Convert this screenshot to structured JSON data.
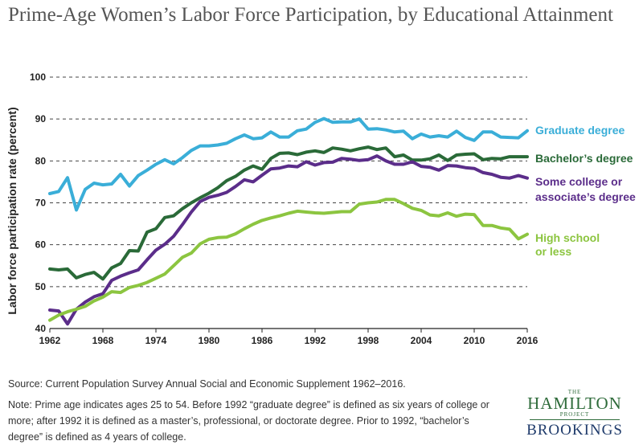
{
  "title": "Prime-Age Women’s Labor Force Participation, by Educational Attainment",
  "source": "Source: Current Population Survey Annual Social and Economic Supplement 1962–2016.",
  "note": "Note: Prime age indicates ages 25 to 54. Before 1992 “graduate degree” is defined as six years of college or more; after 1992 it is defined as a master’s, professional, or doctorate degree. Prior to 1992, “bachelor’s degree” is defined as 4 years of college.",
  "logo": {
    "the": "THE",
    "hamilton": "HAMILTON",
    "project": "PROJECT",
    "brookings": "BROOKINGS"
  },
  "chart_data": {
    "type": "line",
    "title": "Prime-Age Women’s Labor Force Participation, by Educational Attainment",
    "xlabel": "",
    "ylabel": "Labor force participation rate (percent)",
    "xlim": [
      1962,
      2016
    ],
    "ylim": [
      40,
      100
    ],
    "yticks": [
      40,
      50,
      60,
      70,
      80,
      90,
      100
    ],
    "xticks": [
      1962,
      1968,
      1974,
      1980,
      1986,
      1992,
      1998,
      2004,
      2010,
      2016
    ],
    "grid": "horizontal dashed",
    "x": [
      1962,
      1963,
      1964,
      1965,
      1966,
      1967,
      1968,
      1969,
      1970,
      1971,
      1972,
      1973,
      1974,
      1975,
      1976,
      1977,
      1978,
      1979,
      1980,
      1981,
      1982,
      1983,
      1984,
      1985,
      1986,
      1987,
      1988,
      1989,
      1990,
      1991,
      1992,
      1993,
      1994,
      1995,
      1996,
      1997,
      1998,
      1999,
      2000,
      2001,
      2002,
      2003,
      2004,
      2005,
      2006,
      2007,
      2008,
      2009,
      2010,
      2011,
      2012,
      2013,
      2014,
      2015,
      2016
    ],
    "series": [
      {
        "name": "Graduate degree",
        "label_lines": [
          "Graduate degree"
        ],
        "color": "#3aaed8",
        "values": [
          72.2,
          72.7,
          76.0,
          68.3,
          73.2,
          74.7,
          74.3,
          74.5,
          76.8,
          74.0,
          76.5,
          77.8,
          79.2,
          80.3,
          79.3,
          80.8,
          82.5,
          83.6,
          83.6,
          83.8,
          84.2,
          85.3,
          86.2,
          85.3,
          85.5,
          86.9,
          85.7,
          85.7,
          87.2,
          87.6,
          89.2,
          90.1,
          89.2,
          89.3,
          89.3,
          90.0,
          87.6,
          87.7,
          87.4,
          86.9,
          87.1,
          85.3,
          86.4,
          85.7,
          86.0,
          85.7,
          87.1,
          85.6,
          84.9,
          86.9,
          86.9,
          85.7,
          85.6,
          85.5,
          87.2
        ]
      },
      {
        "name": "Bachelor’s degree",
        "label_lines": [
          "Bachelor’s degree"
        ],
        "color": "#2a6a38",
        "values": [
          54.2,
          54.0,
          54.2,
          52.1,
          52.9,
          53.4,
          51.8,
          54.5,
          55.5,
          58.6,
          58.5,
          63.0,
          63.8,
          66.5,
          66.9,
          68.6,
          70.0,
          71.2,
          72.3,
          73.6,
          75.3,
          76.3,
          77.8,
          78.8,
          78.0,
          80.6,
          81.8,
          81.9,
          81.5,
          82.1,
          82.4,
          82.0,
          83.1,
          82.8,
          82.4,
          82.9,
          83.3,
          82.7,
          83.1,
          81.0,
          81.4,
          80.2,
          80.2,
          80.5,
          81.4,
          80.1,
          81.4,
          81.6,
          81.7,
          80.3,
          80.6,
          80.5,
          81.0,
          81.0,
          81.0
        ]
      },
      {
        "name": "Some college or associate’s degree",
        "label_lines": [
          "Some college or",
          "associate’s degree"
        ],
        "color": "#5b2d8a",
        "values": [
          44.4,
          44.2,
          41.1,
          44.6,
          46.3,
          47.6,
          48.3,
          51.5,
          52.5,
          53.3,
          54.0,
          56.4,
          58.7,
          60.1,
          62.0,
          64.8,
          67.8,
          70.3,
          71.3,
          71.8,
          72.5,
          73.9,
          75.5,
          75.0,
          76.6,
          78.1,
          78.3,
          78.8,
          78.6,
          79.8,
          79.0,
          79.6,
          79.7,
          80.6,
          80.4,
          80.1,
          80.3,
          81.2,
          80.0,
          79.2,
          79.2,
          79.8,
          78.7,
          78.5,
          77.8,
          78.9,
          78.8,
          78.4,
          78.2,
          77.2,
          76.8,
          76.1,
          75.9,
          76.5,
          75.9
        ]
      },
      {
        "name": "High school or less",
        "label_lines": [
          "High school",
          "or less"
        ],
        "color": "#8cc540",
        "values": [
          42.0,
          43.2,
          44.0,
          44.6,
          45.3,
          46.6,
          47.5,
          48.8,
          48.6,
          49.8,
          50.3,
          51.0,
          52.0,
          53.0,
          55.0,
          57.0,
          58.0,
          60.2,
          61.3,
          61.7,
          61.8,
          62.6,
          63.8,
          64.9,
          65.8,
          66.4,
          66.9,
          67.5,
          68.0,
          67.8,
          67.6,
          67.5,
          67.7,
          67.9,
          67.9,
          69.7,
          70.0,
          70.2,
          70.8,
          70.8,
          69.8,
          68.7,
          68.2,
          67.1,
          66.9,
          67.6,
          66.8,
          67.3,
          67.2,
          64.6,
          64.6,
          64.0,
          63.7,
          61.4,
          62.5
        ]
      }
    ]
  }
}
